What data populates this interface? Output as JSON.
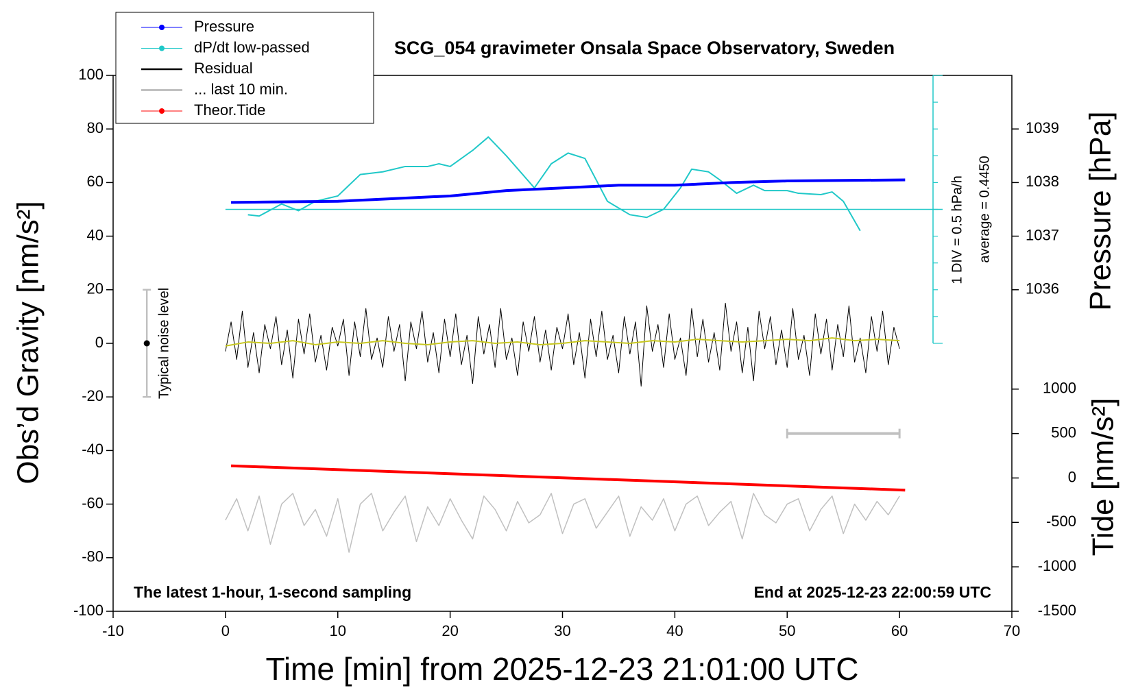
{
  "chart_data": {
    "type": "line",
    "title": "SCG_054 gravimeter Onsala Space Observatory, Sweden",
    "x_label": "Time [min] from 2025-12-23 21:01:00 UTC",
    "y_label": "Obs’d Gravity [nm/s²]",
    "y2_label": "Pressure [hPa]",
    "y3_label": "Tide [nm/s²]",
    "note_left": "The latest 1-hour, 1-second sampling",
    "note_right": "End at 2025-12-23 22:00:59 UTC",
    "xlim": [
      -10,
      70
    ],
    "xticks": [
      -10,
      0,
      10,
      20,
      30,
      40,
      50,
      60,
      70
    ],
    "ylim": [
      -100,
      100
    ],
    "yticks": [
      -100,
      -80,
      -60,
      -40,
      -20,
      0,
      20,
      40,
      60,
      80,
      100
    ],
    "y2lim": [
      1030,
      1040
    ],
    "y2ticks": [
      1036,
      1037,
      1038,
      1039
    ],
    "y3lim": [
      -1500,
      4530
    ],
    "y3ticks": [
      -1500,
      -1000,
      -500,
      0,
      500,
      1000
    ],
    "dpdt_scale": {
      "div_label": "1 DIV = 0.5 hPa/h",
      "average_label": "average = 0.4450",
      "div": 0.5,
      "average": 0.445
    },
    "noise_level": {
      "label": "Typical noise level",
      "x": -7,
      "low": -20,
      "high": 20,
      "center": 0
    },
    "last_10_min_span": {
      "x": [
        50,
        60
      ],
      "level": 500
    },
    "series": [
      {
        "name": "Pressure",
        "color": "#0000ff",
        "axis": "y2",
        "width": 4,
        "x": [
          0.5,
          10,
          20,
          25,
          30,
          35,
          40,
          45,
          50,
          60.5
        ],
        "values": [
          1037.63,
          1037.65,
          1037.75,
          1037.85,
          1037.9,
          1037.95,
          1037.95,
          1038,
          1038.03,
          1038.05
        ]
      },
      {
        "name": "dP/dt low-passed",
        "color": "#20c8c8",
        "axis": "div",
        "width": 2,
        "x": [
          2,
          3,
          5,
          6.5,
          8,
          10,
          12,
          14,
          16,
          18,
          19,
          20,
          22,
          23.4,
          25,
          27.5,
          29,
          30.5,
          32,
          34,
          36,
          37.5,
          39,
          40.5,
          41.5,
          43,
          44,
          45.5,
          47,
          48,
          50,
          51,
          53,
          54,
          55,
          56.5
        ],
        "values": [
          0.345,
          0.32,
          0.545,
          0.42,
          0.595,
          0.695,
          1.095,
          1.145,
          1.245,
          1.245,
          1.295,
          1.245,
          1.545,
          1.795,
          1.445,
          0.845,
          1.295,
          1.495,
          1.395,
          0.595,
          0.345,
          0.295,
          0.445,
          0.845,
          1.195,
          1.145,
          0.995,
          0.745,
          0.895,
          0.795,
          0.795,
          0.745,
          0.72,
          0.77,
          0.595,
          0.045
        ]
      },
      {
        "name": "Residual",
        "color": "#000000",
        "axis": "y",
        "width": 1,
        "x": [
          0,
          0.5,
          1,
          1.5,
          2,
          2.5,
          3,
          3.5,
          4,
          4.5,
          5,
          5.5,
          6,
          6.5,
          7,
          7.5,
          8,
          8.5,
          9,
          9.5,
          10,
          10.5,
          11,
          11.5,
          12,
          12.5,
          13,
          13.5,
          14,
          14.5,
          15,
          15.5,
          16,
          16.5,
          17,
          17.5,
          18,
          18.5,
          19,
          19.5,
          20,
          20.5,
          21,
          21.5,
          22,
          22.5,
          23,
          23.5,
          24,
          24.5,
          25,
          25.5,
          26,
          26.5,
          27,
          27.5,
          28,
          28.5,
          29,
          29.5,
          30,
          30.5,
          31,
          31.5,
          32,
          32.5,
          33,
          33.5,
          34,
          34.5,
          35,
          35.5,
          36,
          36.5,
          37,
          37.5,
          38,
          38.5,
          39,
          39.5,
          40,
          40.5,
          41,
          41.5,
          42,
          42.5,
          43,
          43.5,
          44,
          44.5,
          45,
          45.5,
          46,
          46.5,
          47,
          47.5,
          48,
          48.5,
          49,
          49.5,
          50,
          50.5,
          51,
          51.5,
          52,
          52.5,
          53,
          53.5,
          54,
          54.5,
          55,
          55.5,
          56,
          56.5,
          57,
          57.5,
          58,
          58.5,
          59,
          59.5,
          60
        ],
        "values": [
          -3,
          8,
          -6,
          12,
          -9,
          4,
          -11,
          7,
          -2,
          10,
          -8,
          5,
          -13,
          9,
          -4,
          11,
          -7,
          3,
          -10,
          6,
          -1,
          9,
          -12,
          8,
          -5,
          13,
          -6,
          2,
          -9,
          10,
          -3,
          7,
          -14,
          8,
          -2,
          12,
          -7,
          4,
          -11,
          9,
          -5,
          11,
          -8,
          3,
          -15,
          10,
          -4,
          7,
          -9,
          13,
          -6,
          2,
          -12,
          8,
          -3,
          10,
          -7,
          5,
          -10,
          6,
          -2,
          11,
          -8,
          4,
          -13,
          9,
          -5,
          12,
          -6,
          3,
          -11,
          10,
          -4,
          8,
          -16,
          14,
          -3,
          7,
          -9,
          11,
          -6,
          2,
          -12,
          13,
          -5,
          9,
          -7,
          4,
          -10,
          15,
          -3,
          8,
          -11,
          6,
          -14,
          12,
          -2,
          10,
          -8,
          5,
          -9,
          13,
          -6,
          3,
          -12,
          11,
          -4,
          9,
          -10,
          7,
          -5,
          14,
          -7,
          2,
          -11,
          10,
          -3,
          12,
          -8,
          6,
          -2
        ]
      },
      {
        "name": "... last 10 min.",
        "color": "#c0c0c0",
        "axis": "y",
        "width": 1.5,
        "x": [
          0,
          1,
          2,
          3,
          4,
          5,
          6,
          7,
          8,
          9,
          10,
          11,
          12,
          13,
          14,
          15,
          16,
          17,
          18,
          19,
          20,
          21,
          22,
          23,
          24,
          25,
          26,
          27,
          28,
          29,
          30,
          31,
          32,
          33,
          34,
          35,
          36,
          37,
          38,
          39,
          40,
          41,
          42,
          43,
          44,
          45,
          46,
          47,
          48,
          49,
          50,
          51,
          52,
          53,
          54,
          55,
          56,
          57,
          58,
          59,
          60
        ],
        "values": [
          -66,
          -58,
          -70,
          -57,
          -75,
          -60,
          -56,
          -68,
          -62,
          -72,
          -58,
          -78,
          -60,
          -56,
          -70,
          -63,
          -57,
          -74,
          -61,
          -68,
          -58,
          -66,
          -73,
          -57,
          -62,
          -70,
          -59,
          -67,
          -64,
          -56,
          -71,
          -60,
          -58,
          -69,
          -63,
          -57,
          -72,
          -61,
          -66,
          -58,
          -70,
          -60,
          -57,
          -68,
          -63,
          -59,
          -73,
          -56,
          -64,
          -67,
          -60,
          -58,
          -70,
          -62,
          -57,
          -71,
          -60,
          -66,
          -59,
          -64,
          -57
        ]
      },
      {
        "name": "Theor.Tide",
        "color": "#ff0000",
        "axis": "y3",
        "width": 4,
        "x": [
          0.5,
          60.5
        ],
        "values": [
          137,
          -137
        ]
      },
      {
        "color": "#c8c820",
        "axis": "y",
        "width": 2,
        "x": [
          0,
          2,
          4,
          6,
          8,
          10,
          12,
          14,
          16,
          18,
          20,
          22,
          24,
          26,
          28,
          30,
          32,
          34,
          36,
          38,
          40,
          42,
          44,
          46,
          48,
          50,
          52,
          54,
          56,
          58,
          60
        ],
        "values": [
          -1,
          0.5,
          0,
          1,
          -0.5,
          0.5,
          0,
          1,
          0,
          -0.5,
          0.5,
          1,
          0,
          0.5,
          -0.5,
          0,
          1,
          0.5,
          0,
          1,
          0.5,
          1.5,
          1,
          0.5,
          1,
          1.5,
          1,
          2,
          1,
          1.5,
          1
        ]
      }
    ]
  }
}
